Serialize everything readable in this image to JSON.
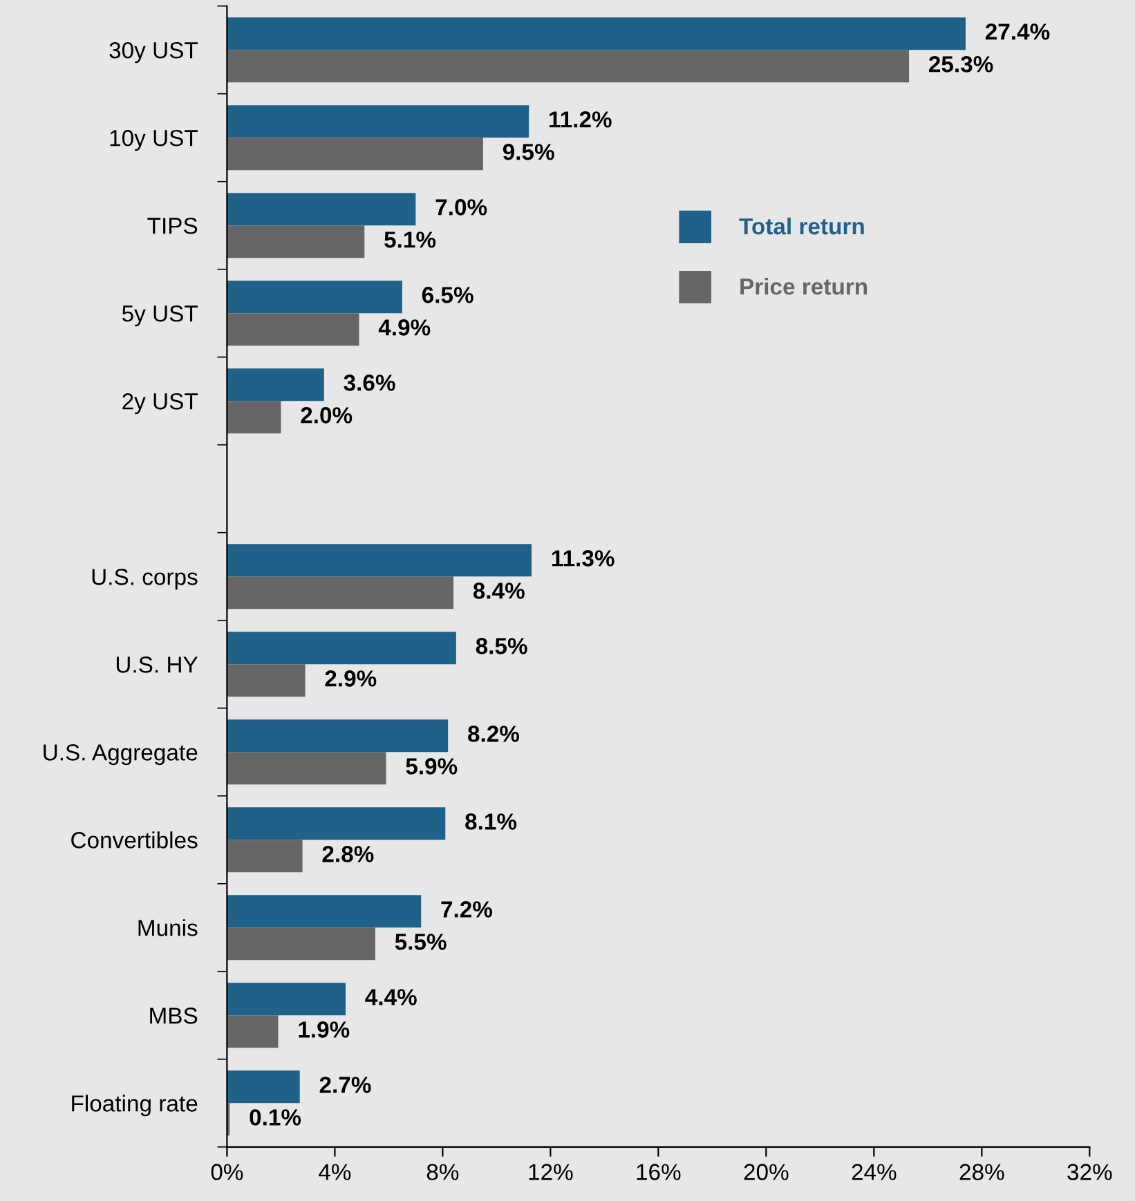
{
  "chart_data": {
    "type": "bar",
    "orientation": "horizontal",
    "categories": [
      "30y UST",
      "10y UST",
      "TIPS",
      "5y UST",
      "2y UST",
      null,
      "U.S. corps",
      "U.S. HY",
      "U.S. Aggregate",
      "Convertibles",
      "Munis",
      "MBS",
      "Floating rate"
    ],
    "series": [
      {
        "name": "Total return",
        "color": "#1f6189",
        "values": [
          27.4,
          11.2,
          7.0,
          6.5,
          3.6,
          null,
          11.3,
          8.5,
          8.2,
          8.1,
          7.2,
          4.4,
          2.7
        ],
        "value_labels": [
          "27.4%",
          "11.2%",
          "7.0%",
          "6.5%",
          "3.6%",
          null,
          "11.3%",
          "8.5%",
          "8.2%",
          "8.1%",
          "7.2%",
          "4.4%",
          "2.7%"
        ]
      },
      {
        "name": "Price return",
        "color": "#666666",
        "values": [
          25.3,
          9.5,
          5.1,
          4.9,
          2.0,
          null,
          8.4,
          2.9,
          5.9,
          2.8,
          5.5,
          1.9,
          0.1
        ],
        "value_labels": [
          "25.3%",
          "9.5%",
          "5.1%",
          "4.9%",
          "2.0%",
          null,
          "8.4%",
          "2.9%",
          "5.9%",
          "2.8%",
          "5.5%",
          "1.9%",
          "0.1%"
        ]
      }
    ],
    "xlim": [
      0,
      32
    ],
    "xticks": [
      {
        "value": 0,
        "label": "0%"
      },
      {
        "value": 4,
        "label": "4%"
      },
      {
        "value": 8,
        "label": "8%"
      },
      {
        "value": 12,
        "label": "12%"
      },
      {
        "value": 16,
        "label": "16%"
      },
      {
        "value": 20,
        "label": "20%"
      },
      {
        "value": 24,
        "label": "24%"
      },
      {
        "value": 28,
        "label": "28%"
      },
      {
        "value": 32,
        "label": "32%"
      }
    ],
    "grid": false,
    "legend": "center right"
  }
}
